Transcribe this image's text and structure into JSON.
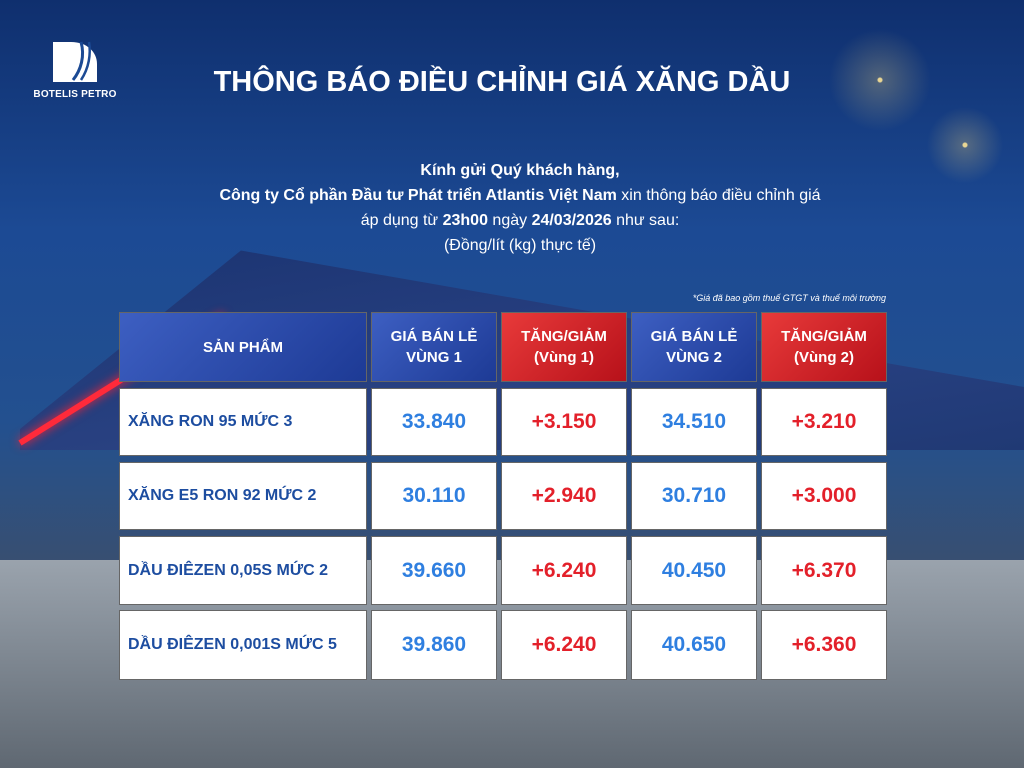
{
  "brand": {
    "logo_text": "BOTELIS PETRO"
  },
  "title": "THÔNG BÁO ĐIỀU CHỈNH GIÁ XĂNG DẦU",
  "intro": {
    "greeting": "Kính gửi Quý khách hàng,",
    "company": "Công ty Cổ phần Đầu tư Phát triển Atlantis Việt Nam",
    "line2_rest": " xin thông báo điều chỉnh giá",
    "line3_a": "áp dụng từ ",
    "time": "23h00",
    "line3_b": " ngày ",
    "date": "24/03/2026",
    "line3_c": " như sau:",
    "unit": "(Đồng/lít (kg) thực tế)"
  },
  "note": "*Giá đã bao gồm thuế GTGT và thuế môi trường",
  "table": {
    "headers": [
      {
        "l1": "SẢN PHẨM",
        "l2": ""
      },
      {
        "l1": "GIÁ BÁN LẺ",
        "l2": "VÙNG 1"
      },
      {
        "l1": "TĂNG/GIẢM",
        "l2": "(Vùng 1)"
      },
      {
        "l1": "GIÁ BÁN LẺ",
        "l2": "VÙNG 2"
      },
      {
        "l1": "TĂNG/GIẢM",
        "l2": "(Vùng 2)"
      }
    ],
    "rows": [
      [
        "XĂNG RON 95 MỨC 3",
        "33.840",
        "+3.150",
        "34.510",
        "+3.210"
      ],
      [
        "XĂNG E5 RON 92 MỨC 2",
        "30.110",
        "+2.940",
        "30.710",
        "+3.000"
      ],
      [
        "DẦU ĐIÊZEN 0,05S MỨC 2",
        "39.660",
        "+6.240",
        "40.450",
        "+6.370"
      ],
      [
        "DẦU ĐIÊZEN 0,001S MỨC 5",
        "39.860",
        "+6.240",
        "40.650",
        "+6.360"
      ]
    ]
  },
  "colors": {
    "header_blue": "#2a4bb0",
    "header_red": "#d42028",
    "price_blue": "#2f7fe0",
    "change_red": "#e3202a"
  }
}
